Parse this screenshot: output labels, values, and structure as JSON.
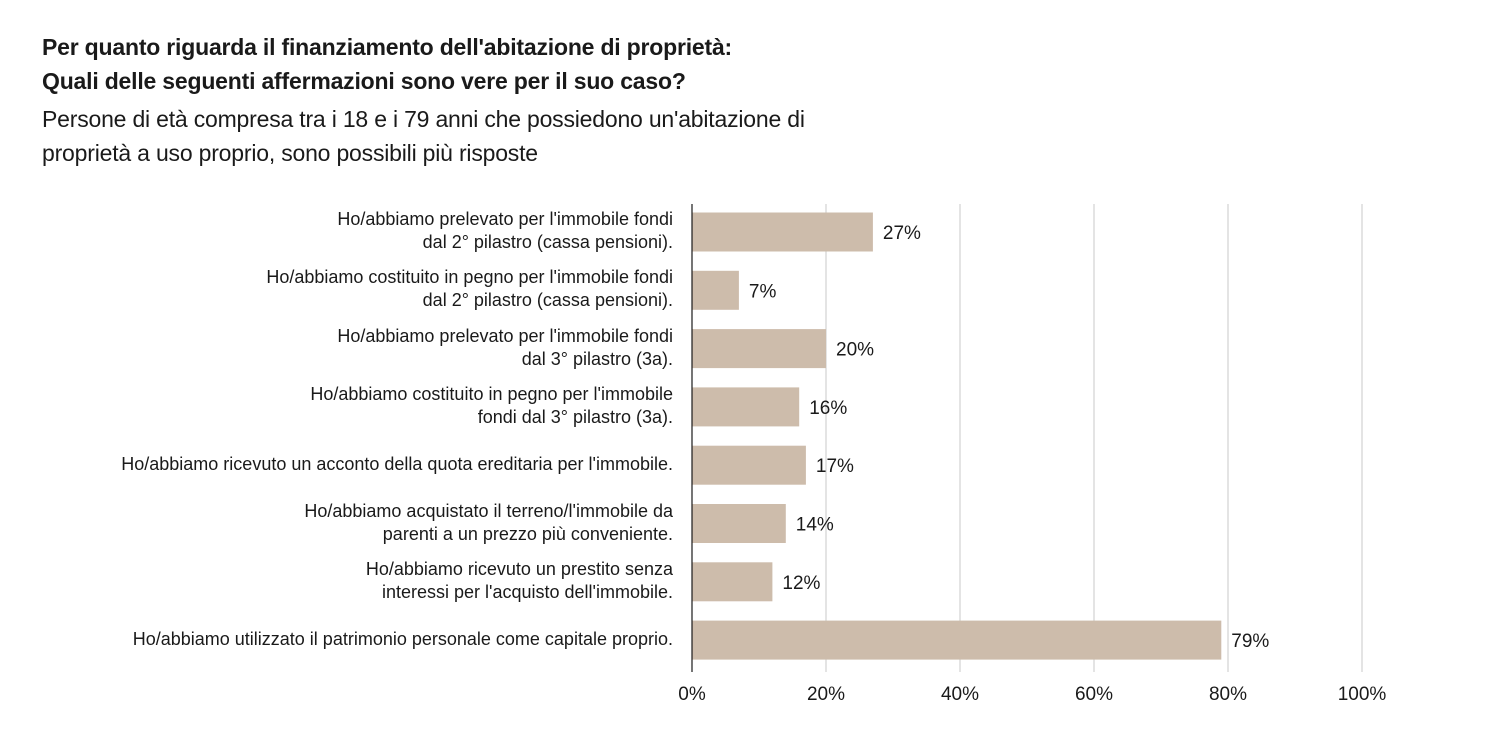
{
  "chart_data": {
    "type": "bar",
    "orientation": "horizontal",
    "title": "Per quanto riguarda il finanziamento dell'abitazione di proprietà:\nQuali delle seguenti affermazioni sono vere per il suo caso?",
    "title_lines": [
      "Per quanto riguarda il finanziamento dell'abitazione di proprietà:",
      "Quali delle seguenti affermazioni sono vere per il suo caso?"
    ],
    "subtitle_lines": [
      "Persone di età compresa tra i 18 e i 79 anni che possiedono un'abitazione di",
      "proprietà a uso proprio, sono possibili più risposte"
    ],
    "categories": [
      "Ho/abbiamo prelevato per l'immobile fondi\ndal 2° pilastro (cassa pensioni).",
      "Ho/abbiamo costituito in pegno per l'immobile fondi\ndal 2° pilastro (cassa pensioni).",
      "Ho/abbiamo prelevato per l'immobile fondi\ndal 3° pilastro (3a).",
      "Ho/abbiamo costituito in pegno per l'immobile\nfondi dal 3° pilastro (3a).",
      "Ho/abbiamo ricevuto un acconto della quota ereditaria per l'immobile.",
      "Ho/abbiamo acquistato il terreno/l'immobile da\nparenti a un prezzo più conveniente.",
      "Ho/abbiamo ricevuto un prestito senza\ninteressi per l'acquisto dell'immobile.",
      "Ho/abbiamo utilizzato il patrimonio personale come capitale proprio."
    ],
    "values": [
      27,
      7,
      20,
      16,
      17,
      14,
      12,
      79
    ],
    "value_labels": [
      "27%",
      "7%",
      "20%",
      "16%",
      "17%",
      "14%",
      "12%",
      "79%"
    ],
    "xlabel": "",
    "ylabel": "",
    "xlim": [
      0,
      100
    ],
    "x_ticks": [
      0,
      20,
      40,
      60,
      80,
      100
    ],
    "x_tick_labels": [
      "0%",
      "20%",
      "40%",
      "60%",
      "80%",
      "100%"
    ],
    "grid": true,
    "legend": "none",
    "colors": {
      "bar": "#cdbcab",
      "grid": "#c8c8c8",
      "axis": "#1a1a1a",
      "text": "#1a1a1a"
    }
  }
}
